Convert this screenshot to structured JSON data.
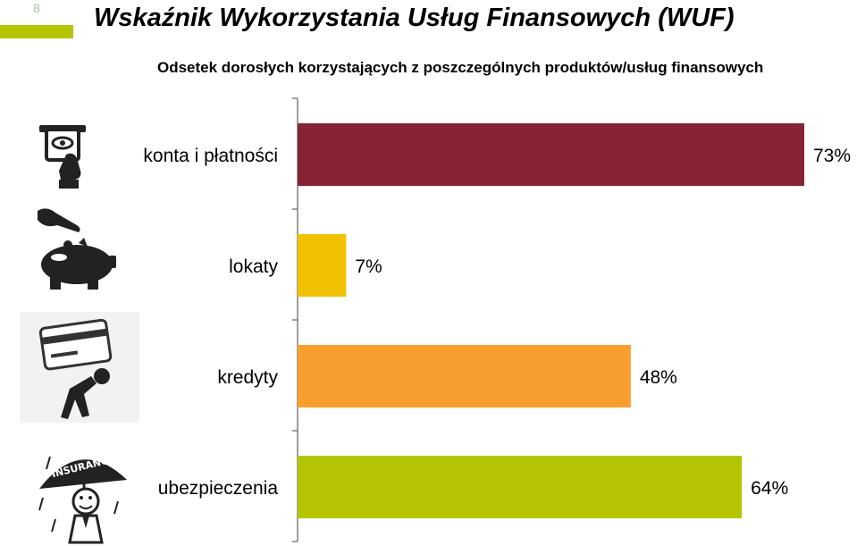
{
  "slide": {
    "number": "8",
    "accent_color": "#b5c400"
  },
  "header": {
    "title": "Wskaźnik Wykorzystania Usług Finansowych (WUF)"
  },
  "chart_data": {
    "type": "bar",
    "orientation": "horizontal",
    "title": "Odsetek dorosłych korzystających z poszczególnych produktów/usług finansowych",
    "categories": [
      "konta i płatności",
      "lokaty",
      "kredyty",
      "ubezpieczenia"
    ],
    "values": [
      73,
      7,
      48,
      64
    ],
    "value_labels": [
      "73%",
      "7%",
      "48%",
      "64%"
    ],
    "unit": "%",
    "colors": [
      "#862433",
      "#f1c100",
      "#f89e2f",
      "#b5c400"
    ],
    "xlim": [
      0,
      73
    ],
    "legend": "none",
    "grid": false
  },
  "icons": [
    {
      "name": "atm-card-icon"
    },
    {
      "name": "piggy-bank-icon"
    },
    {
      "name": "credit-burden-icon"
    },
    {
      "name": "insurance-umbrella-icon"
    }
  ]
}
